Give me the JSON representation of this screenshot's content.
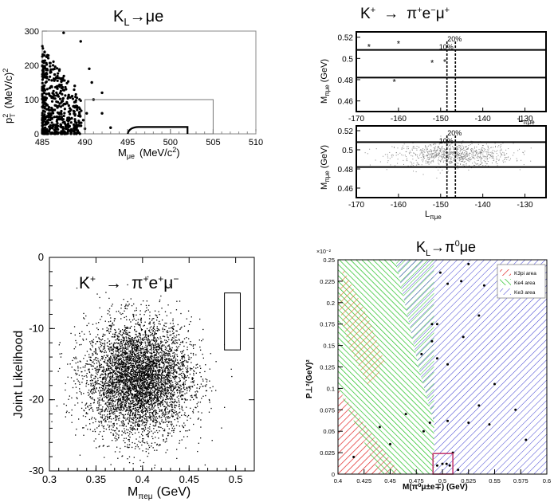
{
  "chart_data": [
    {
      "id": "tl",
      "type": "scatter",
      "title": "K_L→μe",
      "title_main": "K",
      "title_sub": "L",
      "title_tail": "→μe",
      "xlabel_main": "M",
      "xlabel_sub": "μe",
      "xlabel_tail": "(MeV/c",
      "xlabel_sup": "2",
      "xlabel_close": ")",
      "ylabel_main": "p",
      "ylabel_sup": "2",
      "ylabel_sub": "T",
      "ylabel_tail": "(MeV/c)",
      "ylabel_sup2": "2",
      "xlim": [
        485,
        510
      ],
      "ylim": [
        0,
        300
      ],
      "xticks": [
        "485",
        "490",
        "495",
        "500",
        "505",
        "510"
      ],
      "yticks": [
        "0",
        "100",
        "200",
        "300"
      ],
      "box_outer": {
        "x": [
          490,
          505
        ],
        "y": [
          0,
          100
        ]
      },
      "box_inner": {
        "x": [
          495,
          502
        ],
        "y": [
          0,
          20
        ]
      },
      "points_note": "dense cluster at M 485–489 MeV/c², pT² 0–250"
    },
    {
      "id": "tr1",
      "type": "scatter",
      "title_main": "K",
      "title_sup": "+",
      "title_arrow": "→",
      "title_rest": "π",
      "title_sup2": "+",
      "title_rest2": "e",
      "title_sup3": "−",
      "title_rest3": "μ",
      "title_sup4": "+",
      "ylabel": "M_πμe (GeV)",
      "ylabel_main": "M",
      "ylabel_sub": "πμe",
      "ylabel_tail": "(GeV)",
      "xlabel_main": "L",
      "xlabel_sub": "πμe",
      "xlim": [
        -170,
        -125
      ],
      "ylim": [
        0.45,
        0.525
      ],
      "xticks": [
        "-170",
        "-160",
        "-150",
        "-140",
        "-130"
      ],
      "yticks": [
        "0.46",
        "0.48",
        "0.5",
        "0.52"
      ],
      "band": [
        0.482,
        0.508
      ],
      "cut_lines": [
        {
          "x": -148.5,
          "label": "10%"
        },
        {
          "x": -146.5,
          "label": "20%"
        }
      ],
      "stars": [
        {
          "x": -167,
          "y": 0.511
        },
        {
          "x": -160,
          "y": 0.514
        },
        {
          "x": -152,
          "y": 0.496
        },
        {
          "x": -149,
          "y": 0.497
        },
        {
          "x": -161,
          "y": 0.478
        }
      ]
    },
    {
      "id": "tr2",
      "type": "scatter",
      "ylabel_main": "M",
      "ylabel_sub": "πμe",
      "ylabel_tail": "(GeV)",
      "xlabel_main": "L",
      "xlabel_sub": "πμe",
      "xlim": [
        -170,
        -125
      ],
      "ylim": [
        0.45,
        0.525
      ],
      "xticks": [
        "-170",
        "-160",
        "-150",
        "-140",
        "-130"
      ],
      "yticks": [
        "0.46",
        "0.48",
        "0.5",
        "0.52"
      ],
      "band": [
        0.482,
        0.508
      ],
      "cut_lines": [
        {
          "x": -148.5,
          "label": "10%"
        },
        {
          "x": -146.5,
          "label": "20%"
        }
      ],
      "cloud": {
        "x_center": -147,
        "x_spread": 7,
        "y_center": 0.495,
        "y_spread": 0.006
      }
    },
    {
      "id": "bl",
      "type": "scatter",
      "title_main": "K",
      "title_sup": "+",
      "title_arrow": "→",
      "title_rest": "π",
      "title_sup2": "+",
      "title_rest2": "e",
      "title_sup3": "+",
      "title_rest3": "μ",
      "title_sup4": "−",
      "xlabel_main": "M",
      "xlabel_sub": "πeμ",
      "xlabel_tail": "(GeV)",
      "ylabel": "Joint Likelihood",
      "xlim": [
        0.3,
        0.52
      ],
      "ylim": [
        -30,
        0
      ],
      "xticks": [
        "0.3",
        "0.35",
        "0.4",
        "0.45",
        "0.5"
      ],
      "yticks": [
        "0",
        "-10",
        "-20",
        "-30"
      ],
      "signal_box": {
        "x": [
          0.488,
          0.505
        ],
        "y": [
          -13,
          -5
        ]
      },
      "cloud": {
        "x_center": 0.395,
        "x_spread": 0.028,
        "y_center": -17,
        "y_spread": 4
      }
    },
    {
      "id": "br",
      "type": "scatter",
      "title_main": "K",
      "title_sub": "L",
      "title_arrow": "→",
      "title_rest": "π",
      "title_sup": "0",
      "title_rest2": "μe",
      "xlabel": "M(π⁰μ±e∓)  (GeV)",
      "ylabel": "P⊥²(GeV)²",
      "scale_note": "×10⁻²",
      "xlim": [
        0.4,
        0.6
      ],
      "ylim": [
        0,
        0.25
      ],
      "xticks": [
        "0.4",
        "0.425",
        "0.45",
        "0.475",
        "0.5",
        "0.525",
        "0.55",
        "0.575",
        "0.6"
      ],
      "yticks": [
        "0",
        "0.025",
        "0.05",
        "0.075",
        "0.1",
        "0.125",
        "0.15",
        "0.175",
        "0.2",
        "0.225",
        "0.25"
      ],
      "legend": [
        {
          "label": "K3pi area",
          "color": "#e02020"
        },
        {
          "label": "Ke4 area",
          "color": "#1fbf1f"
        },
        {
          "label": "Ke3 area",
          "color": "#3a3ad0"
        }
      ],
      "legend_position": "top-right",
      "signal_box": {
        "x": [
          0.491,
          0.51
        ],
        "y": [
          0,
          0.024
        ]
      },
      "points": [
        {
          "x": 0.498,
          "y": 0.235
        },
        {
          "x": 0.505,
          "y": 0.222
        },
        {
          "x": 0.518,
          "y": 0.225
        },
        {
          "x": 0.525,
          "y": 0.245
        },
        {
          "x": 0.49,
          "y": 0.175
        },
        {
          "x": 0.495,
          "y": 0.175
        },
        {
          "x": 0.49,
          "y": 0.155
        },
        {
          "x": 0.495,
          "y": 0.135
        },
        {
          "x": 0.505,
          "y": 0.128
        },
        {
          "x": 0.52,
          "y": 0.16
        },
        {
          "x": 0.535,
          "y": 0.185
        },
        {
          "x": 0.54,
          "y": 0.22
        },
        {
          "x": 0.48,
          "y": 0.14
        },
        {
          "x": 0.482,
          "y": 0.05
        },
        {
          "x": 0.488,
          "y": 0.06
        },
        {
          "x": 0.505,
          "y": 0.062
        },
        {
          "x": 0.525,
          "y": 0.06
        },
        {
          "x": 0.535,
          "y": 0.08
        },
        {
          "x": 0.545,
          "y": 0.058
        },
        {
          "x": 0.55,
          "y": 0.105
        },
        {
          "x": 0.57,
          "y": 0.075
        },
        {
          "x": 0.58,
          "y": 0.04
        },
        {
          "x": 0.51,
          "y": 0.025
        },
        {
          "x": 0.495,
          "y": 0.01
        },
        {
          "x": 0.5,
          "y": 0.012
        },
        {
          "x": 0.504,
          "y": 0.012
        },
        {
          "x": 0.507,
          "y": 0.01
        },
        {
          "x": 0.415,
          "y": 0.02
        },
        {
          "x": 0.44,
          "y": 0.055
        },
        {
          "x": 0.515,
          "y": 0.005
        },
        {
          "x": 0.465,
          "y": 0.07
        },
        {
          "x": 0.45,
          "y": 0.035
        }
      ]
    }
  ]
}
